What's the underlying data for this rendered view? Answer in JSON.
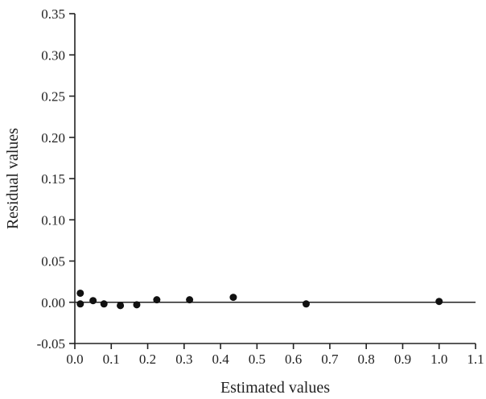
{
  "chart_data": {
    "type": "scatter",
    "title": "",
    "xlabel": "Estimated values",
    "ylabel": "Residual values",
    "xlim": [
      0.0,
      1.1
    ],
    "ylim": [
      -0.05,
      0.35
    ],
    "xticks": [
      0.0,
      0.1,
      0.2,
      0.3,
      0.4,
      0.5,
      0.6,
      0.7,
      0.8,
      0.9,
      1.0,
      1.1
    ],
    "xtick_labels": [
      "0.0",
      "0.1",
      "0.2",
      "0.3",
      "0.4",
      "0.5",
      "0.6",
      "0.7",
      "0.8",
      "0.9",
      "1.0",
      "1.1"
    ],
    "yticks": [
      -0.05,
      0.0,
      0.05,
      0.1,
      0.15,
      0.2,
      0.25,
      0.3,
      0.35
    ],
    "ytick_labels": [
      "-0.05",
      "0.00",
      "0.05",
      "0.10",
      "0.15",
      "0.20",
      "0.25",
      "0.30",
      "0.35"
    ],
    "reference_line": {
      "y": 0.0
    },
    "grid": false,
    "series": [
      {
        "points": [
          {
            "x": 0.015,
            "y": 0.011
          },
          {
            "x": 0.015,
            "y": -0.002
          },
          {
            "x": 0.05,
            "y": 0.002
          },
          {
            "x": 0.08,
            "y": -0.002
          },
          {
            "x": 0.125,
            "y": -0.004
          },
          {
            "x": 0.17,
            "y": -0.003
          },
          {
            "x": 0.225,
            "y": 0.003
          },
          {
            "x": 0.315,
            "y": 0.003
          },
          {
            "x": 0.435,
            "y": 0.006
          },
          {
            "x": 0.635,
            "y": -0.002
          },
          {
            "x": 1.0,
            "y": 0.001
          }
        ],
        "color": "#111111"
      }
    ]
  }
}
